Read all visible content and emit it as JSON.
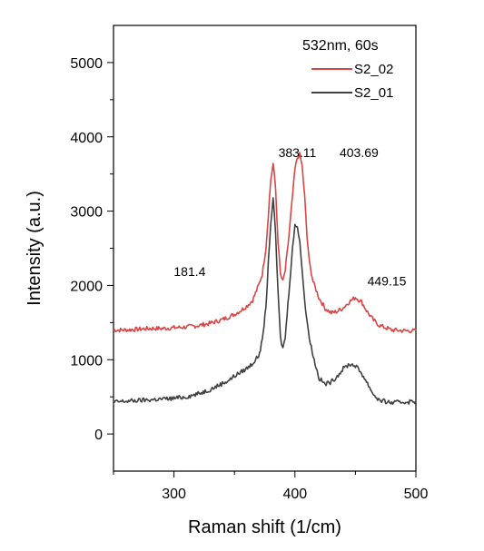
{
  "chart_data": {
    "type": "line",
    "title": "",
    "xlabel": "Raman shift (1/cm)",
    "ylabel": "Intensity (a.u.)",
    "xlim": [
      250,
      500
    ],
    "ylim": [
      -500,
      5500
    ],
    "xticks": [
      300,
      400,
      500
    ],
    "yticks": [
      0,
      1000,
      2000,
      3000,
      4000,
      5000
    ],
    "grid": false,
    "legend": {
      "placement": "top-right",
      "title": "532nm, 60s",
      "entries": [
        "S2_02",
        "S2_01"
      ]
    },
    "series": [
      {
        "name": "S2_02",
        "color": "#d94545",
        "x": [
          250,
          260,
          270,
          280,
          290,
          300,
          310,
          320,
          330,
          340,
          350,
          355,
          360,
          365,
          370,
          373,
          376,
          378,
          380,
          382,
          384,
          386,
          388,
          390,
          392,
          395,
          398,
          400,
          402,
          404,
          406,
          408,
          410,
          412,
          415,
          420,
          425,
          430,
          435,
          440,
          445,
          450,
          455,
          460,
          465,
          470,
          480,
          490,
          500
        ],
        "y": [
          1400,
          1400,
          1410,
          1420,
          1420,
          1430,
          1440,
          1460,
          1490,
          1540,
          1610,
          1660,
          1720,
          1800,
          2000,
          2150,
          2500,
          2950,
          3420,
          3640,
          3300,
          2600,
          2150,
          2050,
          2200,
          2650,
          3200,
          3560,
          3720,
          3760,
          3600,
          3200,
          2650,
          2300,
          2050,
          1830,
          1690,
          1630,
          1650,
          1700,
          1780,
          1840,
          1780,
          1640,
          1530,
          1460,
          1400,
          1390,
          1390
        ]
      },
      {
        "name": "S2_01",
        "color": "#404040",
        "x": [
          250,
          260,
          270,
          280,
          290,
          300,
          310,
          320,
          330,
          340,
          345,
          350,
          355,
          360,
          365,
          370,
          373,
          376,
          378,
          380,
          382,
          384,
          386,
          388,
          390,
          392,
          395,
          398,
          400,
          402,
          404,
          406,
          408,
          410,
          412,
          415,
          420,
          425,
          430,
          435,
          440,
          445,
          450,
          455,
          460,
          465,
          470,
          480,
          490,
          500
        ],
        "y": [
          430,
          440,
          450,
          460,
          470,
          480,
          500,
          540,
          600,
          680,
          720,
          780,
          830,
          880,
          950,
          1050,
          1250,
          1700,
          2300,
          2850,
          3150,
          2700,
          1900,
          1300,
          1150,
          1300,
          1900,
          2500,
          2800,
          2800,
          2600,
          2200,
          1800,
          1500,
          1300,
          1050,
          750,
          670,
          700,
          780,
          880,
          940,
          920,
          820,
          680,
          530,
          450,
          420,
          430,
          440
        ]
      }
    ],
    "annotations": [
      {
        "text": "181.4",
        "x": 313,
        "y": 2130
      },
      {
        "text": "383.11",
        "x": 402,
        "y": 3730
      },
      {
        "text": "403.69",
        "x": 453,
        "y": 3730
      },
      {
        "text": "449.15",
        "x": 476,
        "y": 2000
      }
    ]
  }
}
